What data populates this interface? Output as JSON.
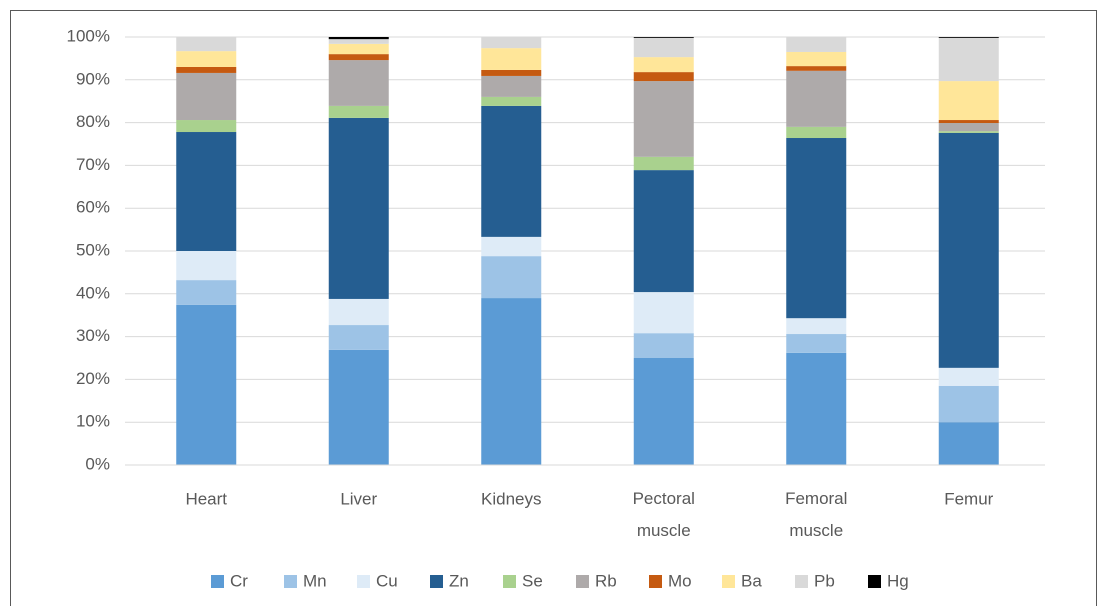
{
  "chart_data": {
    "type": "stacked_bar",
    "categories": [
      "Heart",
      "Liver",
      "Kidneys",
      "Pectoral muscle",
      "Femoral muscle",
      "Femur"
    ],
    "series": [
      {
        "name": "Cr",
        "color": "#5b9bd5",
        "values": [
          37.4,
          26.9,
          39.0,
          25.0,
          26.2,
          10.0
        ]
      },
      {
        "name": "Mn",
        "color": "#9dc3e6",
        "values": [
          5.8,
          5.8,
          9.8,
          5.8,
          4.4,
          8.5
        ]
      },
      {
        "name": "Cu",
        "color": "#deebf7",
        "values": [
          6.8,
          6.1,
          4.5,
          9.6,
          3.7,
          4.2
        ]
      },
      {
        "name": "Zn",
        "color": "#255e91",
        "values": [
          27.8,
          42.3,
          30.6,
          28.5,
          42.1,
          54.9
        ]
      },
      {
        "name": "Se",
        "color": "#a9d18e",
        "values": [
          2.8,
          2.8,
          2.1,
          3.1,
          2.6,
          0.4
        ]
      },
      {
        "name": "Rb",
        "color": "#aeaaaa",
        "values": [
          11.0,
          10.7,
          4.9,
          17.7,
          13.1,
          1.9
        ]
      },
      {
        "name": "Mo",
        "color": "#c55a11",
        "values": [
          1.4,
          1.4,
          1.4,
          2.1,
          1.1,
          0.7
        ]
      },
      {
        "name": "Ba",
        "color": "#ffe699",
        "values": [
          3.7,
          2.4,
          5.1,
          3.5,
          3.3,
          9.1
        ]
      },
      {
        "name": "Pb",
        "color": "#d9d9d9",
        "values": [
          3.3,
          1.1,
          2.6,
          4.5,
          3.5,
          10.1
        ]
      },
      {
        "name": "Hg",
        "color": "#000000",
        "values": [
          0,
          0.5,
          0,
          0.2,
          0,
          0.2
        ]
      }
    ],
    "ylim": [
      0,
      100
    ],
    "yticks": [
      {
        "value": 0,
        "label": "0%"
      },
      {
        "value": 10,
        "label": "10%"
      },
      {
        "value": 20,
        "label": "20%"
      },
      {
        "value": 30,
        "label": "30%"
      },
      {
        "value": 40,
        "label": "40%"
      },
      {
        "value": 50,
        "label": "50%"
      },
      {
        "value": 60,
        "label": "60%"
      },
      {
        "value": 70,
        "label": "70%"
      },
      {
        "value": 80,
        "label": "80%"
      },
      {
        "value": 90,
        "label": "90%"
      },
      {
        "value": 100,
        "label": "100%"
      }
    ],
    "grid": true,
    "legend": "bottom"
  }
}
